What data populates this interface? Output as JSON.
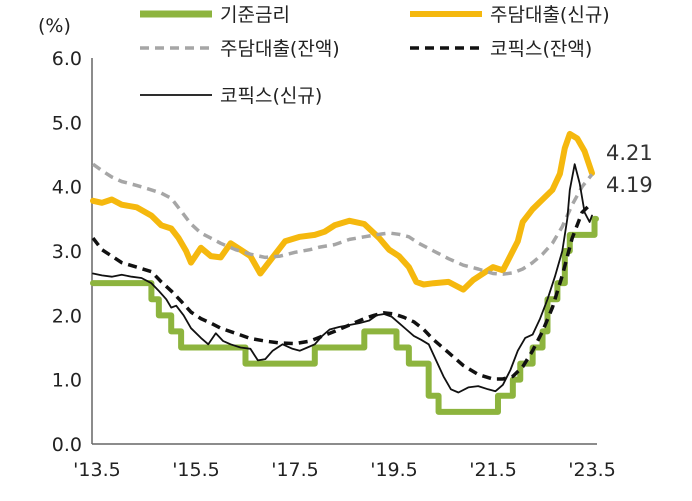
{
  "chart_data": {
    "type": "line",
    "ylabel": "(%)",
    "ylim": [
      0,
      6
    ],
    "yticks": [
      "0.0",
      "1.0",
      "2.0",
      "3.0",
      "4.0",
      "5.0",
      "6.0"
    ],
    "xlim": [
      2013.4,
      2023.6
    ],
    "xticks": [
      {
        "x": 2013.5,
        "label": "'13.5"
      },
      {
        "x": 2015.5,
        "label": "'15.5"
      },
      {
        "x": 2017.5,
        "label": "'17.5"
      },
      {
        "x": 2019.5,
        "label": "'19.5"
      },
      {
        "x": 2021.5,
        "label": "'21.5"
      },
      {
        "x": 2023.5,
        "label": "'23.5"
      }
    ],
    "grid": false,
    "legend_position": "top",
    "series": [
      {
        "name": "기준금리",
        "color": "#8db43e",
        "style": "step",
        "x": [
          2013.42,
          2014.6,
          2014.75,
          2015.0,
          2015.2,
          2015.5,
          2016.5,
          2017.9,
          2018.9,
          2019.55,
          2019.8,
          2020.2,
          2020.4,
          2021.6,
          2021.9,
          2022.05,
          2022.3,
          2022.5,
          2022.6,
          2022.8,
          2022.95,
          2023.05,
          2023.55
        ],
        "values": [
          2.5,
          2.25,
          2.0,
          1.75,
          1.5,
          1.5,
          1.25,
          1.5,
          1.75,
          1.5,
          1.25,
          0.75,
          0.5,
          0.75,
          1.0,
          1.25,
          1.5,
          1.75,
          2.25,
          2.5,
          3.0,
          3.25,
          3.5
        ]
      },
      {
        "name": "주담대출(신규)",
        "color": "#f5b80e",
        "style": "line",
        "x": [
          2013.42,
          2013.6,
          2013.8,
          2014.0,
          2014.3,
          2014.6,
          2014.8,
          2015.0,
          2015.15,
          2015.3,
          2015.4,
          2015.6,
          2015.8,
          2016.0,
          2016.2,
          2016.4,
          2016.6,
          2016.8,
          2017.0,
          2017.3,
          2017.6,
          2017.9,
          2018.1,
          2018.3,
          2018.6,
          2018.9,
          2019.2,
          2019.4,
          2019.6,
          2019.8,
          2019.95,
          2020.1,
          2020.3,
          2020.6,
          2020.9,
          2021.1,
          2021.3,
          2021.5,
          2021.7,
          2021.8,
          2021.9,
          2022.0,
          2022.1,
          2022.3,
          2022.5,
          2022.7,
          2022.85,
          2022.95,
          2023.05,
          2023.2,
          2023.35,
          2023.5
        ],
        "values": [
          3.78,
          3.75,
          3.8,
          3.72,
          3.68,
          3.55,
          3.4,
          3.35,
          3.2,
          3.0,
          2.82,
          3.05,
          2.92,
          2.9,
          3.12,
          3.02,
          2.92,
          2.65,
          2.85,
          3.15,
          3.22,
          3.25,
          3.3,
          3.4,
          3.47,
          3.42,
          3.2,
          3.02,
          2.92,
          2.75,
          2.52,
          2.48,
          2.5,
          2.52,
          2.4,
          2.55,
          2.65,
          2.75,
          2.7,
          2.85,
          3.0,
          3.15,
          3.45,
          3.65,
          3.8,
          3.95,
          4.2,
          4.6,
          4.82,
          4.75,
          4.55,
          4.21
        ]
      },
      {
        "name": "주담대출(잔액)",
        "color": "#a6a6a6",
        "style": "dashed",
        "x": [
          2013.42,
          2013.6,
          2013.8,
          2014.0,
          2014.3,
          2014.6,
          2014.8,
          2015.0,
          2015.2,
          2015.4,
          2015.6,
          2015.8,
          2016.0,
          2016.3,
          2016.6,
          2016.9,
          2017.2,
          2017.5,
          2017.8,
          2018.0,
          2018.3,
          2018.6,
          2018.9,
          2019.2,
          2019.4,
          2019.6,
          2019.8,
          2020.0,
          2020.3,
          2020.6,
          2020.9,
          2021.2,
          2021.5,
          2021.7,
          2021.9,
          2022.1,
          2022.3,
          2022.5,
          2022.7,
          2022.9,
          2023.1,
          2023.3,
          2023.5
        ],
        "values": [
          4.35,
          4.25,
          4.15,
          4.08,
          4.02,
          3.95,
          3.9,
          3.82,
          3.62,
          3.42,
          3.28,
          3.2,
          3.12,
          3.02,
          2.95,
          2.9,
          2.92,
          2.98,
          3.02,
          3.06,
          3.1,
          3.18,
          3.22,
          3.26,
          3.28,
          3.26,
          3.22,
          3.12,
          3.0,
          2.88,
          2.78,
          2.72,
          2.65,
          2.64,
          2.66,
          2.72,
          2.82,
          2.95,
          3.12,
          3.38,
          3.72,
          4.0,
          4.19
        ]
      },
      {
        "name": "코픽스(잔액)",
        "color": "#111111",
        "style": "dashed",
        "x": [
          2013.42,
          2013.6,
          2013.8,
          2014.0,
          2014.3,
          2014.6,
          2014.8,
          2015.0,
          2015.2,
          2015.4,
          2015.6,
          2015.8,
          2016.0,
          2016.3,
          2016.6,
          2016.9,
          2017.2,
          2017.5,
          2017.8,
          2018.0,
          2018.3,
          2018.6,
          2018.9,
          2019.1,
          2019.3,
          2019.5,
          2019.7,
          2019.9,
          2020.1,
          2020.3,
          2020.6,
          2020.9,
          2021.2,
          2021.5,
          2021.7,
          2021.9,
          2022.1,
          2022.3,
          2022.5,
          2022.7,
          2022.9,
          2023.1,
          2023.3,
          2023.5
        ],
        "values": [
          3.2,
          3.02,
          2.92,
          2.82,
          2.75,
          2.68,
          2.52,
          2.38,
          2.22,
          2.05,
          1.95,
          1.88,
          1.8,
          1.72,
          1.64,
          1.6,
          1.57,
          1.56,
          1.6,
          1.66,
          1.75,
          1.85,
          1.95,
          2.0,
          2.04,
          2.02,
          1.97,
          1.9,
          1.78,
          1.62,
          1.42,
          1.22,
          1.08,
          1.01,
          1.01,
          1.05,
          1.2,
          1.45,
          1.75,
          2.12,
          2.62,
          3.2,
          3.6,
          3.75
        ]
      },
      {
        "name": "코픽스(신규)",
        "color": "#111111",
        "style": "thin",
        "x": [
          2013.42,
          2013.6,
          2013.8,
          2014.0,
          2014.2,
          2014.4,
          2014.6,
          2014.75,
          2014.9,
          2015.0,
          2015.1,
          2015.25,
          2015.4,
          2015.6,
          2015.75,
          2015.9,
          2016.05,
          2016.2,
          2016.4,
          2016.6,
          2016.75,
          2016.9,
          2017.05,
          2017.25,
          2017.45,
          2017.6,
          2017.75,
          2017.9,
          2018.05,
          2018.2,
          2018.4,
          2018.6,
          2018.8,
          2019.0,
          2019.15,
          2019.3,
          2019.45,
          2019.6,
          2019.75,
          2019.9,
          2020.05,
          2020.2,
          2020.35,
          2020.5,
          2020.65,
          2020.8,
          2021.0,
          2021.2,
          2021.4,
          2021.55,
          2021.7,
          2021.85,
          2022.0,
          2022.15,
          2022.3,
          2022.45,
          2022.6,
          2022.75,
          2022.9,
          2023.0,
          2023.05,
          2023.15,
          2023.25,
          2023.35,
          2023.45,
          2023.5
        ],
        "values": [
          2.65,
          2.62,
          2.6,
          2.63,
          2.6,
          2.58,
          2.5,
          2.38,
          2.25,
          2.12,
          2.15,
          2.0,
          1.8,
          1.65,
          1.55,
          1.72,
          1.6,
          1.55,
          1.5,
          1.48,
          1.3,
          1.32,
          1.45,
          1.55,
          1.48,
          1.45,
          1.5,
          1.55,
          1.68,
          1.78,
          1.82,
          1.85,
          1.88,
          1.92,
          2.0,
          2.02,
          1.98,
          1.88,
          1.78,
          1.68,
          1.62,
          1.55,
          1.3,
          1.05,
          0.85,
          0.8,
          0.88,
          0.9,
          0.85,
          0.82,
          0.92,
          1.15,
          1.45,
          1.65,
          1.7,
          1.95,
          2.25,
          2.6,
          3.0,
          3.5,
          3.95,
          4.35,
          4.05,
          3.6,
          3.45,
          3.55
        ]
      }
    ],
    "end_labels": [
      {
        "text": "4.21"
      },
      {
        "text": "4.19"
      }
    ]
  }
}
